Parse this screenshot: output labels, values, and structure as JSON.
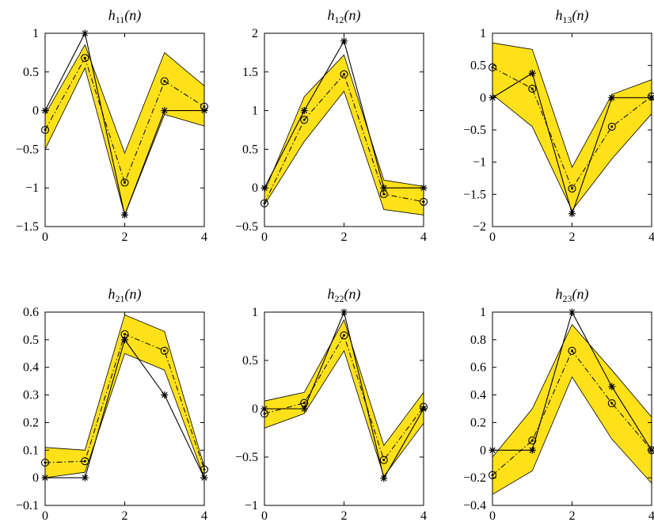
{
  "chart_data": [
    {
      "type": "line",
      "title": {
        "base": "h",
        "sub": "11",
        "arg": "(n)"
      },
      "x": [
        0,
        1,
        2,
        3,
        4
      ],
      "xlim": [
        0,
        4
      ],
      "ylim": [
        -1.5,
        1
      ],
      "xticks": [
        0,
        2,
        4
      ],
      "yticks": [
        -1.5,
        -1,
        -0.5,
        0,
        0.5,
        1
      ],
      "ytick_labels": [
        "−1.5",
        "−1",
        "−0.5",
        "0",
        "0.5",
        "1"
      ],
      "band_upper": [
        -0.05,
        0.85,
        -0.55,
        0.75,
        0.32
      ],
      "band_lower": [
        -0.5,
        0.55,
        -1.35,
        -0.05,
        -0.2
      ],
      "true_values": [
        0,
        1,
        -1.35,
        0,
        0
      ],
      "estimated_values": [
        -0.25,
        0.68,
        -0.93,
        0.38,
        0.05
      ]
    },
    {
      "type": "line",
      "title": {
        "base": "h",
        "sub": "12",
        "arg": "(n)"
      },
      "x": [
        0,
        1,
        2,
        3,
        4
      ],
      "xlim": [
        0,
        4
      ],
      "ylim": [
        -0.5,
        2
      ],
      "xticks": [
        0,
        2,
        4
      ],
      "yticks": [
        -0.5,
        0,
        0.5,
        1,
        1.5,
        2
      ],
      "ytick_labels": [
        "−0.5",
        "0",
        "0.5",
        "1",
        "1.5",
        "2"
      ],
      "band_upper": [
        -0.05,
        1.18,
        1.72,
        0.1,
        0.02
      ],
      "band_lower": [
        -0.22,
        0.6,
        1.25,
        -0.28,
        -0.35
      ],
      "true_values": [
        0,
        1,
        1.9,
        0,
        0
      ],
      "estimated_values": [
        -0.2,
        0.88,
        1.47,
        -0.08,
        -0.18
      ]
    },
    {
      "type": "line",
      "title": {
        "base": "h",
        "sub": "13",
        "arg": "(n)"
      },
      "x": [
        0,
        1,
        2,
        3,
        4
      ],
      "xlim": [
        0,
        4
      ],
      "ylim": [
        -2,
        1
      ],
      "xticks": [
        0,
        2,
        4
      ],
      "yticks": [
        -2,
        -1.5,
        -1,
        -0.5,
        0,
        0.5,
        1
      ],
      "ytick_labels": [
        "−2",
        "−1.5",
        "−1",
        "−0.5",
        "0",
        "0.5",
        "1"
      ],
      "band_upper": [
        0.85,
        0.75,
        -1.08,
        0.05,
        0.28
      ],
      "band_lower": [
        0.05,
        -0.45,
        -1.75,
        -0.95,
        -0.25
      ],
      "true_values": [
        0,
        0.38,
        -1.8,
        0,
        0
      ],
      "estimated_values": [
        0.47,
        0.14,
        -1.41,
        -0.45,
        0.02
      ]
    },
    {
      "type": "line",
      "title": {
        "base": "h",
        "sub": "21",
        "arg": "(n)"
      },
      "x": [
        0,
        1,
        2,
        3,
        4
      ],
      "xlim": [
        0,
        4
      ],
      "ylim": [
        -0.1,
        0.6
      ],
      "xticks": [
        0,
        2,
        4
      ],
      "yticks": [
        -0.1,
        0,
        0.1,
        0.2,
        0.3,
        0.4,
        0.5,
        0.6
      ],
      "ytick_labels": [
        "−0.1",
        "0",
        "0.1",
        "0.2",
        "0.3",
        "0.4",
        "0.5",
        "0.6"
      ],
      "band_upper": [
        0.11,
        0.1,
        0.59,
        0.53,
        0.04
      ],
      "band_lower": [
        0.0,
        0.02,
        0.45,
        0.39,
        0.0
      ],
      "true_values": [
        0,
        0,
        0.5,
        0.3,
        0
      ],
      "estimated_values": [
        0.055,
        0.06,
        0.52,
        0.46,
        0.03
      ]
    },
    {
      "type": "line",
      "title": {
        "base": "h",
        "sub": "22",
        "arg": "(n)"
      },
      "x": [
        0,
        1,
        2,
        3,
        4
      ],
      "xlim": [
        0,
        4
      ],
      "ylim": [
        -1,
        1
      ],
      "xticks": [
        0,
        2,
        4
      ],
      "yticks": [
        -1,
        -0.5,
        0,
        0.5,
        1
      ],
      "ytick_labels": [
        "−1",
        "−0.5",
        "0",
        "0.5",
        "1"
      ],
      "band_upper": [
        0.08,
        0.17,
        0.92,
        -0.38,
        0.17
      ],
      "band_lower": [
        -0.2,
        -0.05,
        0.6,
        -0.7,
        -0.15
      ],
      "true_values": [
        0,
        0,
        1,
        -0.72,
        0
      ],
      "estimated_values": [
        -0.05,
        0.06,
        0.76,
        -0.53,
        0.02
      ]
    },
    {
      "type": "line",
      "title": {
        "base": "h",
        "sub": "23",
        "arg": "(n)"
      },
      "x": [
        0,
        1,
        2,
        3,
        4
      ],
      "xlim": [
        0,
        4
      ],
      "ylim": [
        -0.4,
        1
      ],
      "xticks": [
        0,
        2,
        4
      ],
      "yticks": [
        -0.4,
        -0.2,
        0,
        0.2,
        0.4,
        0.6,
        0.8,
        1
      ],
      "ytick_labels": [
        "−0.4",
        "−0.2",
        "0",
        "0.2",
        "0.4",
        "0.6",
        "0.8",
        "1"
      ],
      "band_upper": [
        -0.05,
        0.3,
        0.91,
        0.58,
        0.24
      ],
      "band_lower": [
        -0.32,
        -0.15,
        0.53,
        0.08,
        -0.24
      ],
      "true_values": [
        0,
        0,
        1,
        0.46,
        0
      ],
      "estimated_values": [
        -0.18,
        0.07,
        0.72,
        0.34,
        0.0
      ]
    }
  ],
  "colors": {
    "band_fill": "#ffe11a",
    "band_edge": "#000000",
    "true_line": "#000000",
    "estimate_line": "#000000"
  }
}
